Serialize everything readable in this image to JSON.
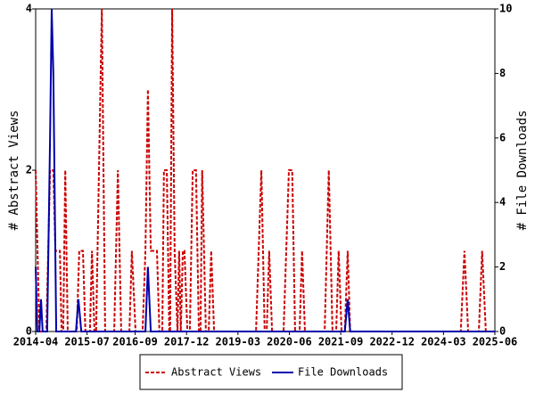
{
  "chart_data": {
    "type": "line",
    "y_label": "# Abstract Views",
    "y2_label": "# File Downloads",
    "xlim": [
      2014.25,
      2025.42
    ],
    "xticks": [
      {
        "value": 2014.25,
        "label": "2014-04"
      },
      {
        "value": 2015.5,
        "label": "2015-07"
      },
      {
        "value": 2016.67,
        "label": "2016-09"
      },
      {
        "value": 2017.92,
        "label": "2017-12"
      },
      {
        "value": 2019.17,
        "label": "2019-03"
      },
      {
        "value": 2020.42,
        "label": "2020-06"
      },
      {
        "value": 2021.67,
        "label": "2021-09"
      },
      {
        "value": 2022.92,
        "label": "2022-12"
      },
      {
        "value": 2024.17,
        "label": "2024-03"
      },
      {
        "value": 2025.42,
        "label": "2025-06"
      }
    ],
    "ylim": [
      0,
      4
    ],
    "yticks": [
      0,
      2,
      4
    ],
    "y2lim": [
      0,
      10
    ],
    "y2ticks": [
      0,
      2,
      4,
      6,
      8,
      10
    ],
    "series": [
      {
        "name": "Abstract Views",
        "color": "#cc0000",
        "dashed": true,
        "x": [
          2014.25,
          2014.34,
          2014.51,
          2014.6,
          2014.68,
          2014.73,
          2014.84,
          2014.88,
          2014.92,
          2014.97,
          2015.03,
          2015.25,
          2015.31,
          2015.4,
          2015.46,
          2015.57,
          2015.62,
          2015.68,
          2015.72,
          2015.79,
          2015.86,
          2015.94,
          2016.16,
          2016.25,
          2016.33,
          2016.53,
          2016.59,
          2016.68,
          2016.85,
          2016.92,
          2016.98,
          2017.05,
          2017.2,
          2017.26,
          2017.33,
          2017.37,
          2017.44,
          2017.5,
          2017.52,
          2017.57,
          2017.63,
          2017.7,
          2017.74,
          2017.78,
          2017.83,
          2017.87,
          2017.94,
          2018.0,
          2018.07,
          2018.15,
          2018.22,
          2018.26,
          2018.3,
          2018.39,
          2018.46,
          2018.52,
          2018.59,
          2019.61,
          2019.74,
          2019.82,
          2019.87,
          2019.93,
          2020.0,
          2020.28,
          2020.41,
          2020.49,
          2020.56,
          2020.67,
          2020.73,
          2020.8,
          2021.28,
          2021.38,
          2021.47,
          2021.56,
          2021.62,
          2021.69,
          2021.77,
          2021.84,
          2021.9,
          2024.59,
          2024.68,
          2024.77,
          2025.03,
          2025.11,
          2025.2,
          2025.42
        ],
        "values": [
          2,
          0,
          0,
          2,
          2,
          1,
          1,
          0,
          0,
          2,
          0,
          0,
          1,
          1,
          0,
          0,
          1,
          0,
          0,
          2,
          4,
          0,
          0,
          2,
          0,
          0,
          1,
          0,
          0,
          1,
          3,
          1,
          1,
          0,
          0,
          2,
          2,
          0,
          0,
          4,
          1,
          0,
          1,
          0,
          1,
          1,
          0,
          0,
          2,
          2,
          0,
          0,
          2,
          0,
          0,
          1,
          0,
          0,
          2,
          0,
          0,
          1,
          0,
          0,
          2,
          2,
          0,
          0,
          1,
          0,
          0,
          2,
          0,
          0,
          1,
          0,
          0,
          1,
          0,
          0,
          1,
          0,
          0,
          1,
          0,
          0
        ]
      },
      {
        "name": "File Downloads",
        "color": "#0000aa",
        "axis": "y2",
        "x": [
          2014.25,
          2014.29,
          2014.34,
          2014.38,
          2014.42,
          2014.53,
          2014.6,
          2014.64,
          2014.68,
          2014.75,
          2015.23,
          2015.29,
          2015.36,
          2016.92,
          2016.98,
          2017.05,
          2021.77,
          2021.84,
          2021.9,
          2025.42
        ],
        "values": [
          2,
          0,
          0,
          1,
          0,
          0,
          6,
          10,
          8,
          0,
          0,
          1,
          0,
          0,
          2,
          0,
          0,
          1,
          0,
          0
        ]
      }
    ]
  }
}
